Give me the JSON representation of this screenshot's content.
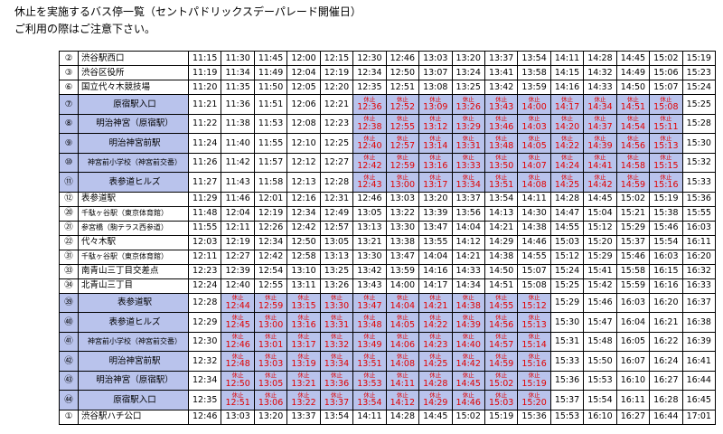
{
  "header": {
    "title": "休止を実施するバス停一覧（セントパドリックスデーパレード開催日）",
    "subtitle": "ご利用の際はご注意下さい。"
  },
  "table": {
    "rows": [
      {
        "no": "②",
        "name": "渋谷駅西口",
        "times": [
          "11:15",
          "11:30",
          "11:45",
          "12:00",
          "12:15",
          "12:30",
          "12:46",
          "13:03",
          "13:20",
          "13:37",
          "13:54",
          "14:11",
          "14:28",
          "14:45",
          "15:02",
          "15:19"
        ]
      },
      {
        "no": "③",
        "name": "渋谷区役所",
        "times": [
          "11:19",
          "11:34",
          "11:49",
          "12:04",
          "12:19",
          "12:34",
          "12:50",
          "13:07",
          "13:24",
          "13:41",
          "13:58",
          "14:15",
          "14:32",
          "14:49",
          "15:06",
          "15:23"
        ]
      },
      {
        "no": "⑥",
        "name": "国立代々木競技場",
        "times": [
          "11:20",
          "11:35",
          "11:50",
          "12:05",
          "12:20",
          "12:35",
          "12:51",
          "13:08",
          "13:25",
          "13:42",
          "13:59",
          "14:16",
          "14:33",
          "14:50",
          "15:07",
          "15:24"
        ]
      },
      {
        "no": "⑦",
        "name": "原宿駅入口",
        "times": [
          "11:21",
          "11:36",
          "11:51",
          "12:06",
          "12:21",
          {
            "status": "休止",
            "time": "12:36"
          },
          {
            "status": "休止",
            "time": "12:52"
          },
          {
            "status": "休止",
            "time": "13:09"
          },
          {
            "status": "休止",
            "time": "13:26"
          },
          {
            "status": "休止",
            "time": "13:43"
          },
          {
            "status": "休止",
            "time": "14:00"
          },
          {
            "status": "休止",
            "time": "14:17"
          },
          {
            "status": "休止",
            "time": "14:34"
          },
          {
            "status": "休止",
            "time": "14:51"
          },
          {
            "status": "休止",
            "time": "15:08"
          },
          "15:25"
        ]
      },
      {
        "no": "⑧",
        "name": "明治神宮（原宿駅）",
        "times": [
          "11:22",
          "11:38",
          "11:53",
          "12:08",
          "12:23",
          {
            "status": "休止",
            "time": "12:38"
          },
          {
            "status": "休止",
            "time": "12:55"
          },
          {
            "status": "休止",
            "time": "13:12"
          },
          {
            "status": "休止",
            "time": "13:29"
          },
          {
            "status": "休止",
            "time": "13:46"
          },
          {
            "status": "休止",
            "time": "14:03"
          },
          {
            "status": "休止",
            "time": "14:20"
          },
          {
            "status": "休止",
            "time": "14:37"
          },
          {
            "status": "休止",
            "time": "14:54"
          },
          {
            "status": "休止",
            "time": "15:11"
          },
          "15:28"
        ]
      },
      {
        "no": "⑨",
        "name": "明治神宮前駅",
        "times": [
          "11:24",
          "11:40",
          "11:55",
          "12:10",
          "12:25",
          {
            "status": "休止",
            "time": "12:40"
          },
          {
            "status": "休止",
            "time": "12:57"
          },
          {
            "status": "休止",
            "time": "13:14"
          },
          {
            "status": "休止",
            "time": "13:31"
          },
          {
            "status": "休止",
            "time": "13:48"
          },
          {
            "status": "休止",
            "time": "14:05"
          },
          {
            "status": "休止",
            "time": "14:22"
          },
          {
            "status": "休止",
            "time": "14:39"
          },
          {
            "status": "休止",
            "time": "14:56"
          },
          {
            "status": "休止",
            "time": "15:13"
          },
          "15:30"
        ]
      },
      {
        "no": "⑩",
        "name": "神宮前小学校（神宮前交番）",
        "times": [
          "11:26",
          "11:42",
          "11:57",
          "12:12",
          "12:27",
          {
            "status": "休止",
            "time": "12:42"
          },
          {
            "status": "休止",
            "time": "12:59"
          },
          {
            "status": "休止",
            "time": "13:16"
          },
          {
            "status": "休止",
            "time": "13:33"
          },
          {
            "status": "休止",
            "time": "13:50"
          },
          {
            "status": "休止",
            "time": "14:07"
          },
          {
            "status": "休止",
            "time": "14:24"
          },
          {
            "status": "休止",
            "time": "14:41"
          },
          {
            "status": "休止",
            "time": "14:58"
          },
          {
            "status": "休止",
            "time": "15:15"
          },
          "15:32"
        ]
      },
      {
        "no": "⑪",
        "name": "表参道ヒルズ",
        "times": [
          "11:27",
          "11:43",
          "11:58",
          "12:13",
          "12:28",
          {
            "status": "休止",
            "time": "12:43"
          },
          {
            "status": "休止",
            "time": "13:00"
          },
          {
            "status": "休止",
            "time": "13:17"
          },
          {
            "status": "休止",
            "time": "13:34"
          },
          {
            "status": "休止",
            "time": "13:51"
          },
          {
            "status": "休止",
            "time": "14:08"
          },
          {
            "status": "休止",
            "time": "14:25"
          },
          {
            "status": "休止",
            "time": "14:42"
          },
          {
            "status": "休止",
            "time": "14:59"
          },
          {
            "status": "休止",
            "time": "15:16"
          },
          "15:33"
        ]
      },
      {
        "no": "⑫",
        "name": "表参道駅",
        "times": [
          "11:29",
          "11:46",
          "12:01",
          "12:16",
          "12:31",
          "12:46",
          "13:03",
          "13:20",
          "13:37",
          "13:54",
          "14:11",
          "14:28",
          "14:45",
          "15:02",
          "15:19",
          "15:36"
        ]
      },
      {
        "no": "⑳",
        "name": "千駄ヶ谷駅（東京体育館）",
        "times": [
          "11:48",
          "12:04",
          "12:19",
          "12:34",
          "12:49",
          "13:05",
          "13:22",
          "13:39",
          "13:56",
          "14:13",
          "14:30",
          "14:47",
          "15:04",
          "15:21",
          "15:38",
          "15:55"
        ]
      },
      {
        "no": "㉑",
        "name": "参宮橋（駒テラス西参道）",
        "times": [
          "11:55",
          "12:11",
          "12:26",
          "12:42",
          "12:57",
          "13:13",
          "13:30",
          "13:47",
          "14:04",
          "14:21",
          "14:38",
          "14:55",
          "15:12",
          "15:29",
          "15:46",
          "16:03"
        ]
      },
      {
        "no": "㉒",
        "name": "代々木駅",
        "times": [
          "12:03",
          "12:19",
          "12:34",
          "12:50",
          "13:05",
          "13:21",
          "13:38",
          "13:55",
          "14:12",
          "14:29",
          "14:46",
          "15:03",
          "15:20",
          "15:37",
          "15:54",
          "16:11"
        ]
      },
      {
        "no": "㉛",
        "name": "千駄ヶ谷駅（東京体育館）",
        "times": [
          "12:11",
          "12:27",
          "12:42",
          "12:58",
          "13:13",
          "13:30",
          "13:47",
          "14:04",
          "14:21",
          "14:38",
          "14:55",
          "15:12",
          "15:29",
          "15:46",
          "16:03",
          "16:20"
        ]
      },
      {
        "no": "㉝",
        "name": "南青山三丁目交差点",
        "times": [
          "12:23",
          "12:39",
          "12:54",
          "13:10",
          "13:25",
          "13:42",
          "13:59",
          "14:16",
          "14:33",
          "14:50",
          "15:07",
          "15:24",
          "15:41",
          "15:58",
          "16:15",
          "16:32"
        ]
      },
      {
        "no": "㉞",
        "name": "北青山三丁目",
        "times": [
          "12:24",
          "12:40",
          "12:55",
          "13:11",
          "13:26",
          "13:43",
          "14:00",
          "14:17",
          "14:34",
          "14:51",
          "15:08",
          "15:25",
          "15:42",
          "15:59",
          "16:16",
          "16:33"
        ]
      },
      {
        "no": "㊴",
        "name": "表参道駅",
        "times": [
          "12:28",
          {
            "status": "休止",
            "time": "12:44"
          },
          {
            "status": "休止",
            "time": "12:59"
          },
          {
            "status": "休止",
            "time": "13:15"
          },
          {
            "status": "休止",
            "time": "13:30"
          },
          {
            "status": "休止",
            "time": "13:47"
          },
          {
            "status": "休止",
            "time": "14:04"
          },
          {
            "status": "休止",
            "time": "14:21"
          },
          {
            "status": "休止",
            "time": "14:38"
          },
          {
            "status": "休止",
            "time": "14:55"
          },
          {
            "status": "休止",
            "time": "15:12"
          },
          "15:29",
          "15:46",
          "16:03",
          "16:20",
          "16:37"
        ]
      },
      {
        "no": "㊵",
        "name": "表参道ヒルズ",
        "times": [
          "12:29",
          {
            "status": "休止",
            "time": "12:45"
          },
          {
            "status": "休止",
            "time": "13:00"
          },
          {
            "status": "休止",
            "time": "13:16"
          },
          {
            "status": "休止",
            "time": "13:31"
          },
          {
            "status": "休止",
            "time": "13:48"
          },
          {
            "status": "休止",
            "time": "14:05"
          },
          {
            "status": "休止",
            "time": "14:22"
          },
          {
            "status": "休止",
            "time": "14:39"
          },
          {
            "status": "休止",
            "time": "14:56"
          },
          {
            "status": "休止",
            "time": "15:13"
          },
          "15:30",
          "15:47",
          "16:04",
          "16:21",
          "16:38"
        ]
      },
      {
        "no": "㊶",
        "name": "神宮前小学校（神宮前交番）",
        "times": [
          "12:30",
          {
            "status": "休止",
            "time": "12:46"
          },
          {
            "status": "休止",
            "time": "13:01"
          },
          {
            "status": "休止",
            "time": "13:17"
          },
          {
            "status": "休止",
            "time": "13:32"
          },
          {
            "status": "休止",
            "time": "13:49"
          },
          {
            "status": "休止",
            "time": "14:06"
          },
          {
            "status": "休止",
            "time": "14:23"
          },
          {
            "status": "休止",
            "time": "14:40"
          },
          {
            "status": "休止",
            "time": "14:57"
          },
          {
            "status": "休止",
            "time": "15:14"
          },
          "15:31",
          "15:48",
          "16:05",
          "16:22",
          "16:39"
        ]
      },
      {
        "no": "㊷",
        "name": "明治神宮前駅",
        "times": [
          "12:32",
          {
            "status": "休止",
            "time": "12:48"
          },
          {
            "status": "休止",
            "time": "13:03"
          },
          {
            "status": "休止",
            "time": "13:19"
          },
          {
            "status": "休止",
            "time": "13:34"
          },
          {
            "status": "休止",
            "time": "13:51"
          },
          {
            "status": "休止",
            "time": "14:08"
          },
          {
            "status": "休止",
            "time": "14:25"
          },
          {
            "status": "休止",
            "time": "14:42"
          },
          {
            "status": "休止",
            "time": "14:59"
          },
          {
            "status": "休止",
            "time": "15:16"
          },
          "15:33",
          "15:50",
          "16:07",
          "16:24",
          "16:41"
        ]
      },
      {
        "no": "㊸",
        "name": "明治神宮（原宿駅）",
        "times": [
          "12:34",
          {
            "status": "休止",
            "time": "12:50"
          },
          {
            "status": "休止",
            "time": "13:05"
          },
          {
            "status": "休止",
            "time": "13:21"
          },
          {
            "status": "休止",
            "time": "13:36"
          },
          {
            "status": "休止",
            "time": "13:53"
          },
          {
            "status": "休止",
            "time": "14:11"
          },
          {
            "status": "休止",
            "time": "14:28"
          },
          {
            "status": "休止",
            "time": "14:45"
          },
          {
            "status": "休止",
            "time": "15:02"
          },
          {
            "status": "休止",
            "time": "15:19"
          },
          "15:36",
          "15:53",
          "16:10",
          "16:27",
          "16:44"
        ]
      },
      {
        "no": "㊹",
        "name": "原宿駅入口",
        "times": [
          "12:35",
          {
            "status": "休止",
            "time": "12:51"
          },
          {
            "status": "休止",
            "time": "13:06"
          },
          {
            "status": "休止",
            "time": "13:22"
          },
          {
            "status": "休止",
            "time": "13:37"
          },
          {
            "status": "休止",
            "time": "13:54"
          },
          {
            "status": "休止",
            "time": "14:12"
          },
          {
            "status": "休止",
            "time": "14:29"
          },
          {
            "status": "休止",
            "time": "14:46"
          },
          {
            "status": "休止",
            "time": "15:03"
          },
          {
            "status": "休止",
            "time": "15:20"
          },
          "15:37",
          "15:54",
          "16:11",
          "16:28",
          "16:45"
        ]
      },
      {
        "no": "①",
        "name": "渋谷駅ハチ公口",
        "times": [
          "12:46",
          "13:03",
          "13:20",
          "13:37",
          "13:54",
          "14:11",
          "14:28",
          "14:45",
          "15:02",
          "15:19",
          "15:36",
          "15:53",
          "16:10",
          "16:27",
          "16:44",
          "17:01"
        ]
      }
    ]
  }
}
